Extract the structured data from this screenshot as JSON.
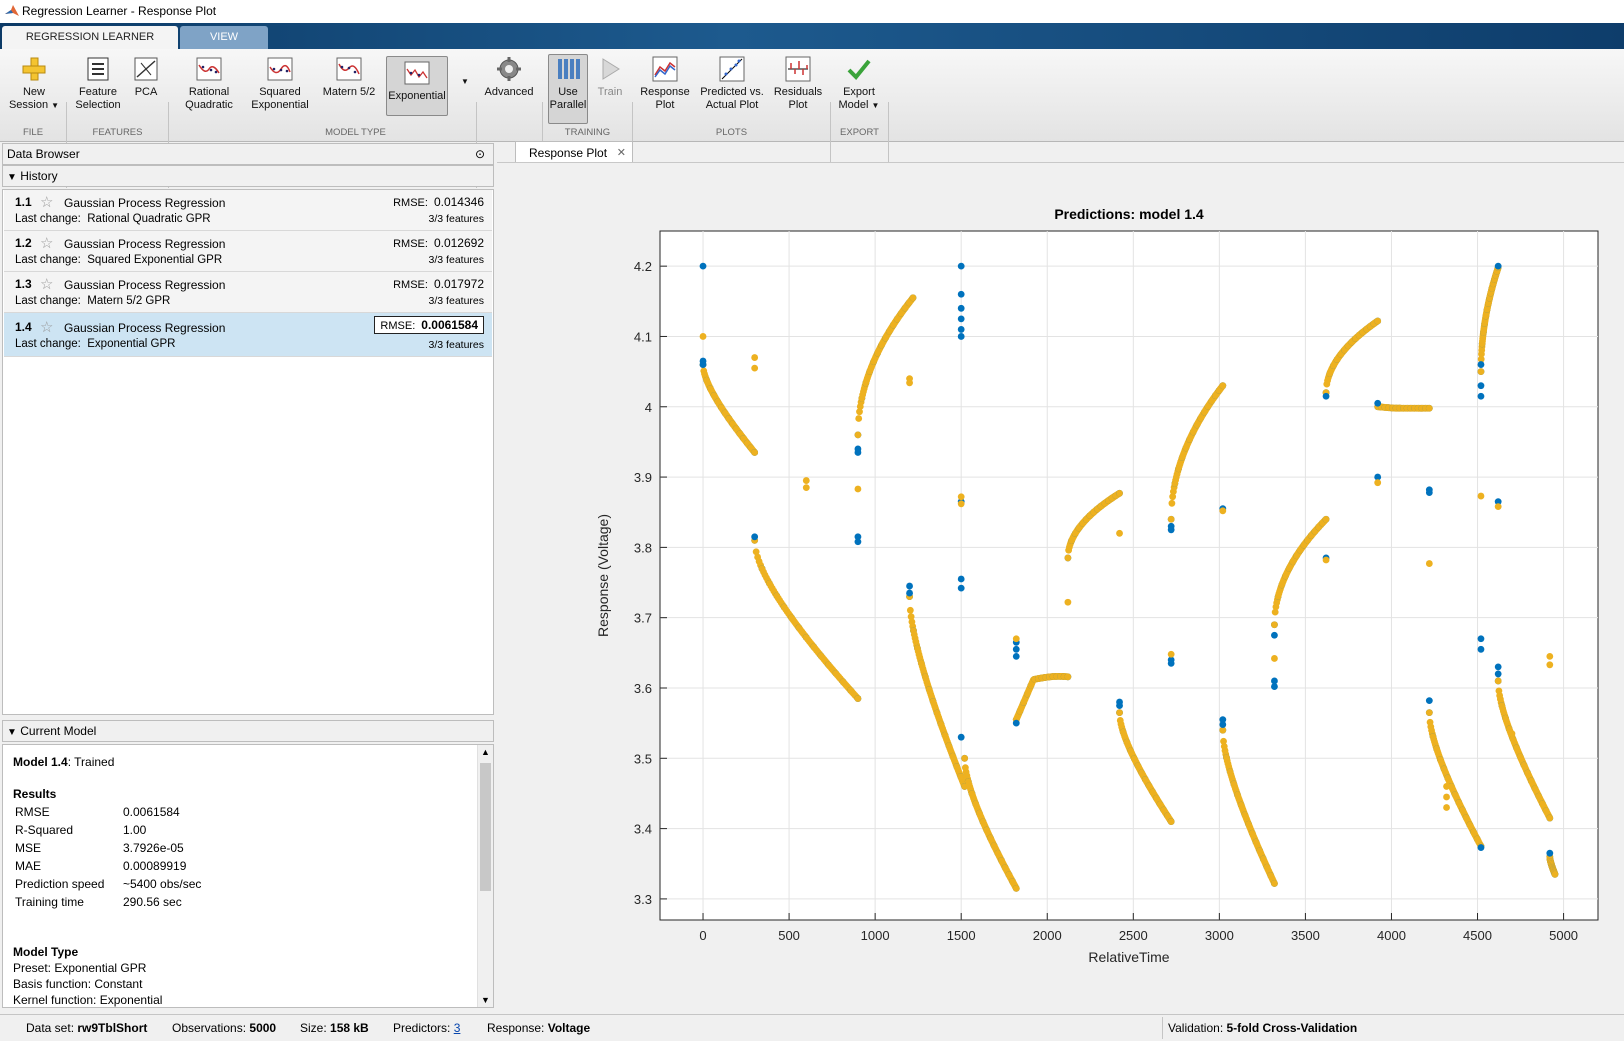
{
  "window": {
    "title": "Regression Learner - Response Plot"
  },
  "ribbon_tabs": [
    {
      "label": "REGRESSION LEARNER",
      "active": true
    },
    {
      "label": "VIEW",
      "active": false
    }
  ],
  "toolbar": {
    "new_session": "New Session",
    "feature_selection": "Feature Selection",
    "pca": "PCA",
    "rational_quadratic": "Rational Quadratic",
    "squared_exponential": "Squared Exponential",
    "matern": "Matern 5/2",
    "exponential": "Exponential",
    "advanced": "Advanced",
    "use_parallel": "Use Parallel",
    "train": "Train",
    "response_plot": "Response Plot",
    "predicted_vs_actual": "Predicted vs. Actual Plot",
    "residuals_plot": "Residuals Plot",
    "export_model": "Export Model"
  },
  "sections": {
    "file": "FILE",
    "features": "FEATURES",
    "model_type": "MODEL TYPE",
    "training": "TRAINING",
    "plots": "PLOTS",
    "export": "EXPORT"
  },
  "data_browser": {
    "title": "Data Browser",
    "history_title": "History",
    "current_model_title": "Current Model"
  },
  "history": [
    {
      "num": "1.1",
      "name": "Gaussian Process Regression",
      "rmse_label": "RMSE:",
      "rmse": "0.014346",
      "change_label": "Last change:",
      "change": "Rational Quadratic GPR",
      "features": "3/3 features"
    },
    {
      "num": "1.2",
      "name": "Gaussian Process Regression",
      "rmse_label": "RMSE:",
      "rmse": "0.012692",
      "change_label": "Last change:",
      "change": "Squared Exponential GPR",
      "features": "3/3 features"
    },
    {
      "num": "1.3",
      "name": "Gaussian Process Regression",
      "rmse_label": "RMSE:",
      "rmse": "0.017972",
      "change_label": "Last change:",
      "change": "Matern 5/2 GPR",
      "features": "3/3 features"
    },
    {
      "num": "1.4",
      "name": "Gaussian Process Regression",
      "rmse_label": "RMSE:",
      "rmse": "0.0061584",
      "change_label": "Last change:",
      "change": "Exponential GPR",
      "features": "3/3 features"
    }
  ],
  "current_model": {
    "model_name": "Model 1.4",
    "model_status": ": Trained",
    "results_title": "Results",
    "results": [
      {
        "label": "RMSE",
        "value": "0.0061584"
      },
      {
        "label": "R-Squared",
        "value": "1.00"
      },
      {
        "label": "MSE",
        "value": "3.7926e-05"
      },
      {
        "label": "MAE",
        "value": "0.00089919"
      },
      {
        "label": "Prediction speed",
        "value": "~5400 obs/sec"
      },
      {
        "label": "Training time",
        "value": "290.56 sec"
      }
    ],
    "model_type_title": "Model Type",
    "model_type_lines": [
      "Preset: Exponential GPR",
      "Basis function: Constant",
      "Kernel function: Exponential"
    ]
  },
  "document_tab": {
    "label": "Response Plot",
    "close": "✕"
  },
  "status": {
    "dataset_label": "Data set:",
    "dataset": "rw9TblShort",
    "observations_label": "Observations:",
    "observations": "5000",
    "size_label": "Size:",
    "size": "158 kB",
    "predictors_label": "Predictors:",
    "predictors": "3",
    "response_label": "Response:",
    "response": "Voltage",
    "validation_label": "Validation:",
    "validation": "5-fold Cross-Validation"
  },
  "chart_data": {
    "type": "scatter",
    "title": "Predictions: model 1.4",
    "xlabel": "RelativeTime",
    "ylabel": "Response (Voltage)",
    "xlim": [
      -250,
      5200
    ],
    "ylim": [
      3.27,
      4.25
    ],
    "xticks": [
      0,
      500,
      1000,
      1500,
      2000,
      2500,
      3000,
      3500,
      4000,
      4500,
      5000
    ],
    "yticks": [
      3.3,
      3.4,
      3.5,
      3.6,
      3.7,
      3.8,
      3.9,
      4,
      4.1,
      4.2
    ],
    "grid": true,
    "colors": {
      "true": "#0072bd",
      "predicted": "#edb120"
    },
    "series": [
      {
        "role": "true",
        "points": [
          [
            0,
            4.2
          ],
          [
            0,
            4.065
          ],
          [
            0,
            4.06
          ],
          [
            300,
            3.815
          ],
          [
            900,
            3.815
          ],
          [
            900,
            3.808
          ],
          [
            900,
            3.94
          ],
          [
            900,
            3.935
          ],
          [
            1200,
            3.745
          ],
          [
            1200,
            3.735
          ],
          [
            1500,
            4.2
          ],
          [
            1500,
            4.16
          ],
          [
            1500,
            4.14
          ],
          [
            1500,
            4.125
          ],
          [
            1500,
            4.11
          ],
          [
            1500,
            4.1
          ],
          [
            1500,
            3.755
          ],
          [
            1500,
            3.742
          ],
          [
            1500,
            3.865
          ],
          [
            1500,
            3.53
          ],
          [
            1820,
            3.665
          ],
          [
            1820,
            3.655
          ],
          [
            1820,
            3.645
          ],
          [
            1820,
            3.55
          ],
          [
            2420,
            3.58
          ],
          [
            2420,
            3.575
          ],
          [
            2720,
            3.825
          ],
          [
            2720,
            3.83
          ],
          [
            2720,
            3.64
          ],
          [
            2720,
            3.635
          ],
          [
            3020,
            3.555
          ],
          [
            3020,
            3.548
          ],
          [
            3020,
            3.855
          ],
          [
            3320,
            3.61
          ],
          [
            3320,
            3.602
          ],
          [
            3320,
            3.675
          ],
          [
            3620,
            3.785
          ],
          [
            3620,
            4.015
          ],
          [
            3920,
            4.005
          ],
          [
            3920,
            3.9
          ],
          [
            4220,
            3.882
          ],
          [
            4220,
            3.878
          ],
          [
            4220,
            3.582
          ],
          [
            4520,
            3.67
          ],
          [
            4520,
            3.655
          ],
          [
            4520,
            4.015
          ],
          [
            4520,
            4.03
          ],
          [
            4520,
            4.06
          ],
          [
            4520,
            3.373
          ],
          [
            4620,
            3.865
          ],
          [
            4620,
            3.63
          ],
          [
            4620,
            3.62
          ],
          [
            4620,
            4.2
          ],
          [
            4920,
            3.365
          ]
        ]
      },
      {
        "role": "predicted",
        "points": [
          [
            0,
            4.1
          ],
          [
            300,
            4.07
          ],
          [
            300,
            4.055
          ],
          [
            600,
            3.895
          ],
          [
            600,
            3.885
          ],
          [
            900,
            3.883
          ],
          [
            1200,
            4.04
          ],
          [
            1200,
            4.034
          ],
          [
            1500,
            3.872
          ],
          [
            1500,
            3.862
          ],
          [
            1820,
            3.67
          ],
          [
            2120,
            3.722
          ],
          [
            2420,
            3.82
          ],
          [
            2720,
            3.648
          ],
          [
            3020,
            3.852
          ],
          [
            3320,
            3.642
          ],
          [
            3620,
            3.782
          ],
          [
            3920,
            3.892
          ],
          [
            4220,
            3.777
          ],
          [
            4320,
            3.46
          ],
          [
            4320,
            3.445
          ],
          [
            4320,
            3.43
          ],
          [
            4520,
            3.873
          ],
          [
            4620,
            3.858
          ],
          [
            4700,
            3.535
          ],
          [
            4920,
            3.645
          ],
          [
            4920,
            3.633
          ]
        ]
      }
    ],
    "segments": [
      {
        "x0": 0,
        "x1": 300,
        "y0": 4.06,
        "y1": 3.935,
        "shape": "decay"
      },
      {
        "x0": 300,
        "x1": 900,
        "y0": 3.81,
        "y1": 3.585,
        "shape": "decay"
      },
      {
        "x0": 900,
        "x1": 1220,
        "y0": 3.96,
        "y1": 4.155,
        "shape": "rise"
      },
      {
        "x0": 1200,
        "x1": 1520,
        "y0": 3.73,
        "y1": 3.46,
        "shape": "decay"
      },
      {
        "x0": 1520,
        "x1": 1820,
        "y0": 3.5,
        "y1": 3.315,
        "shape": "decay"
      },
      {
        "x0": 1820,
        "x1": 2120,
        "y0": 3.555,
        "y1": 3.612,
        "shape": "hump"
      },
      {
        "x0": 2120,
        "x1": 2420,
        "y0": 3.785,
        "y1": 3.877,
        "shape": "rise"
      },
      {
        "x0": 2420,
        "x1": 2720,
        "y0": 3.565,
        "y1": 3.41,
        "shape": "decay"
      },
      {
        "x0": 2720,
        "x1": 3020,
        "y0": 3.84,
        "y1": 4.03,
        "shape": "rise"
      },
      {
        "x0": 3020,
        "x1": 3320,
        "y0": 3.54,
        "y1": 3.322,
        "shape": "decay"
      },
      {
        "x0": 3320,
        "x1": 3620,
        "y0": 3.69,
        "y1": 3.84,
        "shape": "rise"
      },
      {
        "x0": 3620,
        "x1": 3920,
        "y0": 4.02,
        "y1": 4.122,
        "shape": "rise"
      },
      {
        "x0": 3920,
        "x1": 4220,
        "y0": 4.0,
        "y1": 3.998,
        "shape": "hump"
      },
      {
        "x0": 4220,
        "x1": 4520,
        "y0": 3.565,
        "y1": 3.375,
        "shape": "decay"
      },
      {
        "x0": 4520,
        "x1": 4620,
        "y0": 4.05,
        "y1": 4.198,
        "shape": "rise"
      },
      {
        "x0": 4620,
        "x1": 4920,
        "y0": 3.61,
        "y1": 3.415,
        "shape": "decay"
      },
      {
        "x0": 4920,
        "x1": 4950,
        "y0": 3.36,
        "y1": 3.335,
        "shape": "decay"
      }
    ]
  }
}
